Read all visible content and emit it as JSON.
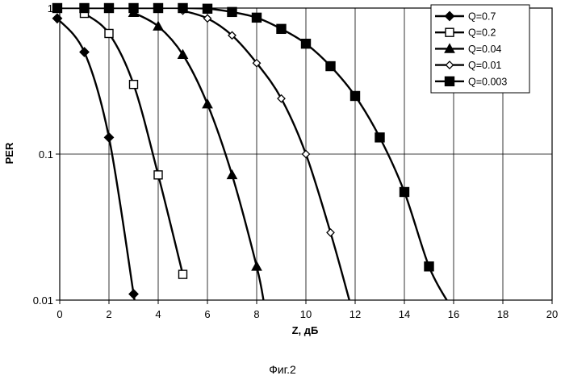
{
  "chart_data": {
    "type": "line",
    "xlabel": "Z, дБ",
    "ylabel": "PER",
    "x_scale": "linear",
    "y_scale": "log",
    "xlim": [
      0,
      20
    ],
    "ylim": [
      0.01,
      1
    ],
    "x_ticks": [
      "0",
      "2",
      "4",
      "6",
      "8",
      "10",
      "12",
      "14",
      "16",
      "18",
      "20"
    ],
    "y_ticks": [
      "0.01",
      "0.1",
      "1"
    ],
    "grid": true,
    "legend_position": "top-right",
    "series": [
      {
        "name": "Q=0.7",
        "marker": "diamond-filled",
        "x": [
          -0.1,
          1,
          2,
          3
        ],
        "y": [
          0.85,
          0.5,
          0.13,
          0.011
        ],
        "curve_end": [
          3.05,
          0.0095
        ]
      },
      {
        "name": "Q=0.2",
        "marker": "square-open",
        "x": [
          1,
          2,
          3,
          4,
          5
        ],
        "y": [
          0.92,
          0.67,
          0.3,
          0.072,
          0.015
        ]
      },
      {
        "name": "Q=0.04",
        "marker": "triangle-filled",
        "x": [
          3,
          4,
          5,
          6,
          7,
          8
        ],
        "y": [
          0.93,
          0.75,
          0.48,
          0.22,
          0.072,
          0.017
        ],
        "curve_end": [
          8.3,
          0.0095
        ]
      },
      {
        "name": "Q=0.01",
        "marker": "diamond-open",
        "x": [
          5,
          6,
          7,
          8,
          9,
          10,
          11
        ],
        "y": [
          0.96,
          0.85,
          0.65,
          0.42,
          0.24,
          0.1,
          0.029
        ],
        "curve_end": [
          11.8,
          0.0095
        ]
      },
      {
        "name": "Q=0.003",
        "marker": "square-filled",
        "x": [
          -0.1,
          1,
          2,
          3,
          4,
          5,
          6,
          7,
          8,
          9,
          10,
          11,
          12,
          13,
          14,
          15
        ],
        "y": [
          1.0,
          1.0,
          1.0,
          1.0,
          1.0,
          1.0,
          0.99,
          0.94,
          0.86,
          0.72,
          0.57,
          0.4,
          0.25,
          0.13,
          0.055,
          0.017
        ],
        "curve_end": [
          15.8,
          0.0095
        ]
      }
    ]
  },
  "caption": "Фиг.2"
}
